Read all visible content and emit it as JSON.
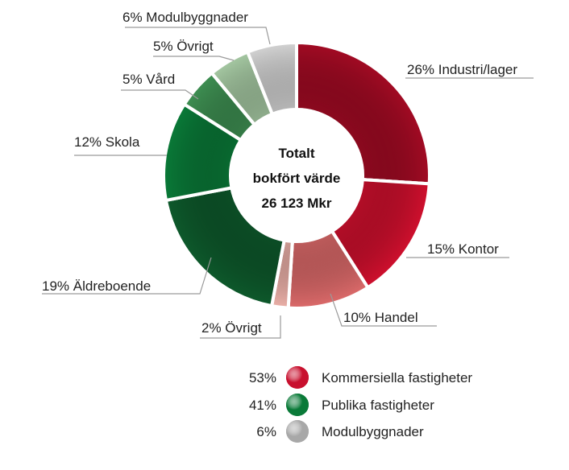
{
  "chart_data": {
    "type": "pie",
    "variant": "donut",
    "center_text": [
      "Totalt",
      "bokfört värde",
      "26 123 Mkr"
    ],
    "slices": [
      {
        "label": "26% Industri/lager",
        "value": 26,
        "color": "#A30B24"
      },
      {
        "label": "15% Kontor",
        "value": 15,
        "color": "#D0102E"
      },
      {
        "label": "10% Handel",
        "value": 10,
        "color": "#DC6A6A"
      },
      {
        "label": "2% Övrigt",
        "value": 2,
        "color": "#EBB0A8"
      },
      {
        "label": "19% Äldreboende",
        "value": 19,
        "color": "#0E5A2C"
      },
      {
        "label": "12% Skola",
        "value": 12,
        "color": "#0A7A38"
      },
      {
        "label": "5% Vård",
        "value": 5,
        "color": "#3E8F52"
      },
      {
        "label": "5% Övrigt",
        "value": 5,
        "color": "#A5C8A2"
      },
      {
        "label": "6% Modulbyggnader",
        "value": 6,
        "color": "#D3D3D3"
      }
    ],
    "legend": [
      {
        "percent": "53%",
        "label": "Kommersiella fastigheter",
        "color": "#C8102E"
      },
      {
        "percent": "41%",
        "label": "Publika fastigheter",
        "color": "#0A7A38"
      },
      {
        "percent": "6%",
        "label": "Modulbyggnader",
        "color": "#A8A8A8"
      }
    ]
  }
}
